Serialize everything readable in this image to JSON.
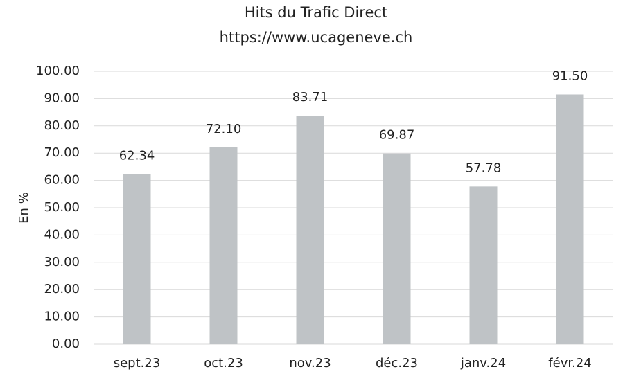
{
  "chart_data": {
    "type": "bar",
    "title": "Hits du Trafic Direct",
    "subtitle": "https://www.ucageneve.ch",
    "y_label": "En %",
    "categories": [
      "sept.23",
      "oct.23",
      "nov.23",
      "déc.23",
      "janv.24",
      "févr.24"
    ],
    "values": [
      62.34,
      72.1,
      83.71,
      69.87,
      57.78,
      91.5
    ],
    "value_labels": [
      "62.34",
      "72.10",
      "83.71",
      "69.87",
      "57.78",
      "91.50"
    ],
    "color": "#bfc3c6",
    "ylim": [
      0,
      100
    ],
    "yticks": [
      {
        "value": 0,
        "label": "0.00"
      },
      {
        "value": 10,
        "label": "10.00"
      },
      {
        "value": 20,
        "label": "20.00"
      },
      {
        "value": 30,
        "label": "30.00"
      },
      {
        "value": 40,
        "label": "40.00"
      },
      {
        "value": 50,
        "label": "50.00"
      },
      {
        "value": 60,
        "label": "60.00"
      },
      {
        "value": 70,
        "label": "70.00"
      },
      {
        "value": 80,
        "label": "80.00"
      },
      {
        "value": 90,
        "label": "90.00"
      },
      {
        "value": 100,
        "label": "100.00"
      }
    ],
    "grid": true
  }
}
